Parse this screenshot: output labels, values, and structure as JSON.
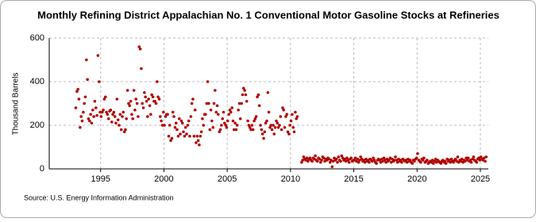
{
  "chart_data": {
    "type": "scatter",
    "title": "Monthly Refining District Appalachian No. 1 Conventional Motor Gasoline Stocks at Refineries",
    "y_label": "Thousand Barrels",
    "source": "Source: U.S. Energy Information Administration",
    "color": "#b30000",
    "grid": true,
    "xlim": [
      1990.94,
      2025.63
    ],
    "xticks": [
      1995,
      2000,
      2005,
      2010,
      2015,
      2020,
      2025
    ],
    "ylim": [
      0,
      600
    ],
    "yticks": [
      0,
      200,
      400,
      600
    ],
    "x": [
      1993.04,
      1993.13,
      1993.21,
      1993.29,
      1993.38,
      1993.46,
      1993.54,
      1993.63,
      1993.71,
      1993.79,
      1993.88,
      1993.96,
      1994.04,
      1994.13,
      1994.21,
      1994.29,
      1994.38,
      1994.46,
      1994.54,
      1994.63,
      1994.71,
      1994.79,
      1994.88,
      1994.96,
      1995.04,
      1995.13,
      1995.21,
      1995.29,
      1995.38,
      1995.46,
      1995.54,
      1995.63,
      1995.71,
      1995.79,
      1995.88,
      1995.96,
      1996.04,
      1996.13,
      1996.21,
      1996.29,
      1996.38,
      1996.46,
      1996.54,
      1996.63,
      1996.71,
      1996.79,
      1996.88,
      1996.96,
      1997.04,
      1997.13,
      1997.21,
      1997.29,
      1997.38,
      1997.46,
      1997.54,
      1997.63,
      1997.71,
      1997.79,
      1997.88,
      1997.96,
      1998.04,
      1998.13,
      1998.21,
      1998.29,
      1998.38,
      1998.46,
      1998.54,
      1998.63,
      1998.71,
      1998.79,
      1998.88,
      1998.96,
      1999.04,
      1999.13,
      1999.21,
      1999.29,
      1999.38,
      1999.46,
      1999.54,
      1999.63,
      1999.71,
      1999.79,
      1999.88,
      1999.96,
      2000.04,
      2000.13,
      2000.21,
      2000.29,
      2000.38,
      2000.46,
      2000.54,
      2000.63,
      2000.71,
      2000.79,
      2000.88,
      2000.96,
      2001.04,
      2001.13,
      2001.21,
      2001.29,
      2001.38,
      2001.46,
      2001.54,
      2001.63,
      2001.71,
      2001.79,
      2001.88,
      2001.96,
      2002.04,
      2002.13,
      2002.21,
      2002.29,
      2002.38,
      2002.46,
      2002.54,
      2002.63,
      2002.71,
      2002.79,
      2002.88,
      2002.96,
      2003.04,
      2003.13,
      2003.21,
      2003.29,
      2003.38,
      2003.46,
      2003.54,
      2003.63,
      2003.71,
      2003.79,
      2003.88,
      2003.96,
      2004.04,
      2004.13,
      2004.21,
      2004.29,
      2004.38,
      2004.46,
      2004.54,
      2004.63,
      2004.71,
      2004.79,
      2004.88,
      2004.96,
      2005.04,
      2005.13,
      2005.21,
      2005.29,
      2005.38,
      2005.46,
      2005.54,
      2005.63,
      2005.71,
      2005.79,
      2005.88,
      2005.96,
      2006.04,
      2006.13,
      2006.21,
      2006.29,
      2006.38,
      2006.46,
      2006.54,
      2006.63,
      2006.71,
      2006.79,
      2006.88,
      2006.96,
      2007.04,
      2007.13,
      2007.21,
      2007.29,
      2007.38,
      2007.46,
      2007.54,
      2007.63,
      2007.71,
      2007.79,
      2007.88,
      2007.96,
      2008.04,
      2008.13,
      2008.21,
      2008.29,
      2008.38,
      2008.46,
      2008.54,
      2008.63,
      2008.71,
      2008.79,
      2008.88,
      2008.96,
      2009.04,
      2009.13,
      2009.21,
      2009.29,
      2009.38,
      2009.46,
      2009.54,
      2009.63,
      2009.71,
      2009.79,
      2009.88,
      2009.96,
      2010.04,
      2010.13,
      2010.21,
      2010.29,
      2010.38,
      2010.46,
      2010.54,
      2010.88,
      2010.96,
      2011.04,
      2011.13,
      2011.21,
      2011.29,
      2011.38,
      2011.46,
      2011.54,
      2011.63,
      2011.71,
      2011.79,
      2011.88,
      2011.96,
      2012.04,
      2012.13,
      2012.21,
      2012.29,
      2012.38,
      2012.46,
      2012.54,
      2012.63,
      2012.71,
      2012.79,
      2012.88,
      2012.96,
      2013.04,
      2013.13,
      2013.21,
      2013.29,
      2013.38,
      2013.46,
      2013.54,
      2013.63,
      2013.71,
      2013.79,
      2013.88,
      2013.96,
      2014.04,
      2014.13,
      2014.21,
      2014.29,
      2014.38,
      2014.46,
      2014.54,
      2014.63,
      2014.71,
      2014.79,
      2014.88,
      2014.96,
      2015.04,
      2015.13,
      2015.21,
      2015.29,
      2015.38,
      2015.46,
      2015.54,
      2015.63,
      2015.71,
      2015.79,
      2015.88,
      2015.96,
      2016.04,
      2016.13,
      2016.21,
      2016.29,
      2016.38,
      2016.46,
      2016.54,
      2016.63,
      2016.71,
      2016.79,
      2016.88,
      2016.96,
      2017.04,
      2017.13,
      2017.21,
      2017.29,
      2017.38,
      2017.46,
      2017.54,
      2017.63,
      2017.71,
      2017.79,
      2017.88,
      2017.96,
      2018.04,
      2018.13,
      2018.21,
      2018.29,
      2018.38,
      2018.46,
      2018.54,
      2018.63,
      2018.71,
      2018.79,
      2018.88,
      2018.96,
      2019.04,
      2019.13,
      2019.21,
      2019.29,
      2019.38,
      2019.46,
      2019.54,
      2019.63,
      2019.71,
      2019.79,
      2019.88,
      2019.96,
      2020.04,
      2020.13,
      2020.21,
      2020.29,
      2020.38,
      2020.46,
      2020.54,
      2020.63,
      2020.71,
      2020.79,
      2020.88,
      2020.96,
      2021.04,
      2021.13,
      2021.21,
      2021.29,
      2021.38,
      2021.46,
      2021.54,
      2021.63,
      2021.71,
      2021.79,
      2021.88,
      2021.96,
      2022.04,
      2022.13,
      2022.21,
      2022.29,
      2022.38,
      2022.46,
      2022.54,
      2022.63,
      2022.71,
      2022.79,
      2022.88,
      2022.96,
      2023.04,
      2023.13,
      2023.21,
      2023.29,
      2023.38,
      2023.46,
      2023.54,
      2023.63,
      2023.71,
      2023.79,
      2023.88,
      2023.96,
      2024.04,
      2024.13,
      2024.21,
      2024.29,
      2024.38,
      2024.46,
      2024.54,
      2024.63,
      2024.71,
      2024.79,
      2024.88,
      2024.96,
      2025.04,
      2025.13,
      2025.21,
      2025.29,
      2025.38,
      2025.46
    ],
    "values": [
      280,
      355,
      365,
      320,
      190,
      240,
      220,
      260,
      300,
      330,
      500,
      410,
      230,
      220,
      250,
      210,
      270,
      240,
      310,
      280,
      245,
      520,
      400,
      260,
      240,
      260,
      270,
      320,
      330,
      260,
      250,
      230,
      265,
      270,
      215,
      250,
      260,
      240,
      210,
      320,
      225,
      200,
      250,
      180,
      240,
      260,
      170,
      180,
      230,
      360,
      300,
      290,
      310,
      250,
      230,
      360,
      270,
      320,
      300,
      240,
      560,
      550,
      460,
      300,
      280,
      350,
      330,
      310,
      240,
      320,
      290,
      250,
      340,
      330,
      310,
      310,
      300,
      400,
      330,
      320,
      240,
      220,
      200,
      260,
      200,
      240,
      250,
      250,
      150,
      200,
      130,
      140,
      260,
      240,
      190,
      210,
      180,
      150,
      230,
      160,
      220,
      210,
      170,
      150,
      190,
      160,
      200,
      220,
      150,
      240,
      300,
      320,
      150,
      270,
      120,
      150,
      130,
      110,
      150,
      170,
      230,
      200,
      250,
      250,
      300,
      400,
      300,
      180,
      270,
      220,
      190,
      300,
      360,
      260,
      290,
      250,
      170,
      180,
      200,
      230,
      260,
      210,
      200,
      190,
      220,
      250,
      270,
      260,
      280,
      220,
      180,
      210,
      180,
      200,
      270,
      300,
      230,
      300,
      340,
      370,
      360,
      340,
      310,
      220,
      200,
      190,
      180,
      200,
      180,
      220,
      230,
      240,
      330,
      340,
      290,
      200,
      180,
      160,
      140,
      170,
      210,
      220,
      350,
      260,
      190,
      200,
      180,
      200,
      160,
      190,
      220,
      210,
      190,
      200,
      240,
      180,
      280,
      270,
      190,
      240,
      250,
      170,
      160,
      200,
      220,
      250,
      190,
      170,
      260,
      230,
      240,
      30,
      40,
      55,
      45,
      40,
      50,
      35,
      45,
      50,
      40,
      35,
      50,
      45,
      60,
      40,
      35,
      50,
      45,
      30,
      40,
      55,
      50,
      35,
      45,
      40,
      50,
      45,
      30,
      40,
      10,
      35,
      50,
      40,
      45,
      30,
      55,
      40,
      35,
      60,
      50,
      40,
      45,
      35,
      50,
      40,
      30,
      45,
      50,
      35,
      40,
      40,
      50,
      35,
      45,
      30,
      40,
      55,
      45,
      35,
      40,
      30,
      45,
      35,
      40,
      30,
      45,
      40,
      35,
      50,
      40,
      30,
      25,
      40,
      45,
      40,
      30,
      45,
      35,
      50,
      40,
      30,
      45,
      35,
      40,
      50,
      30,
      45,
      35,
      40,
      55,
      40,
      30,
      45,
      35,
      40,
      30,
      45,
      40,
      35,
      40,
      30,
      45,
      35,
      40,
      30,
      25,
      40,
      35,
      45,
      50,
      70,
      40,
      35,
      30,
      45,
      40,
      50,
      30,
      35,
      40,
      25,
      30,
      35,
      30,
      40,
      25,
      35,
      45,
      30,
      40,
      35,
      30,
      25,
      35,
      40,
      30,
      35,
      25,
      45,
      35,
      40,
      30,
      45,
      35,
      30,
      40,
      45,
      35,
      55,
      30,
      40,
      35,
      45,
      30,
      40,
      35,
      50,
      40,
      50,
      35,
      40,
      30,
      45,
      55,
      40,
      35,
      30,
      45,
      50,
      40,
      55,
      45,
      40,
      50,
      35,
      55
    ]
  }
}
